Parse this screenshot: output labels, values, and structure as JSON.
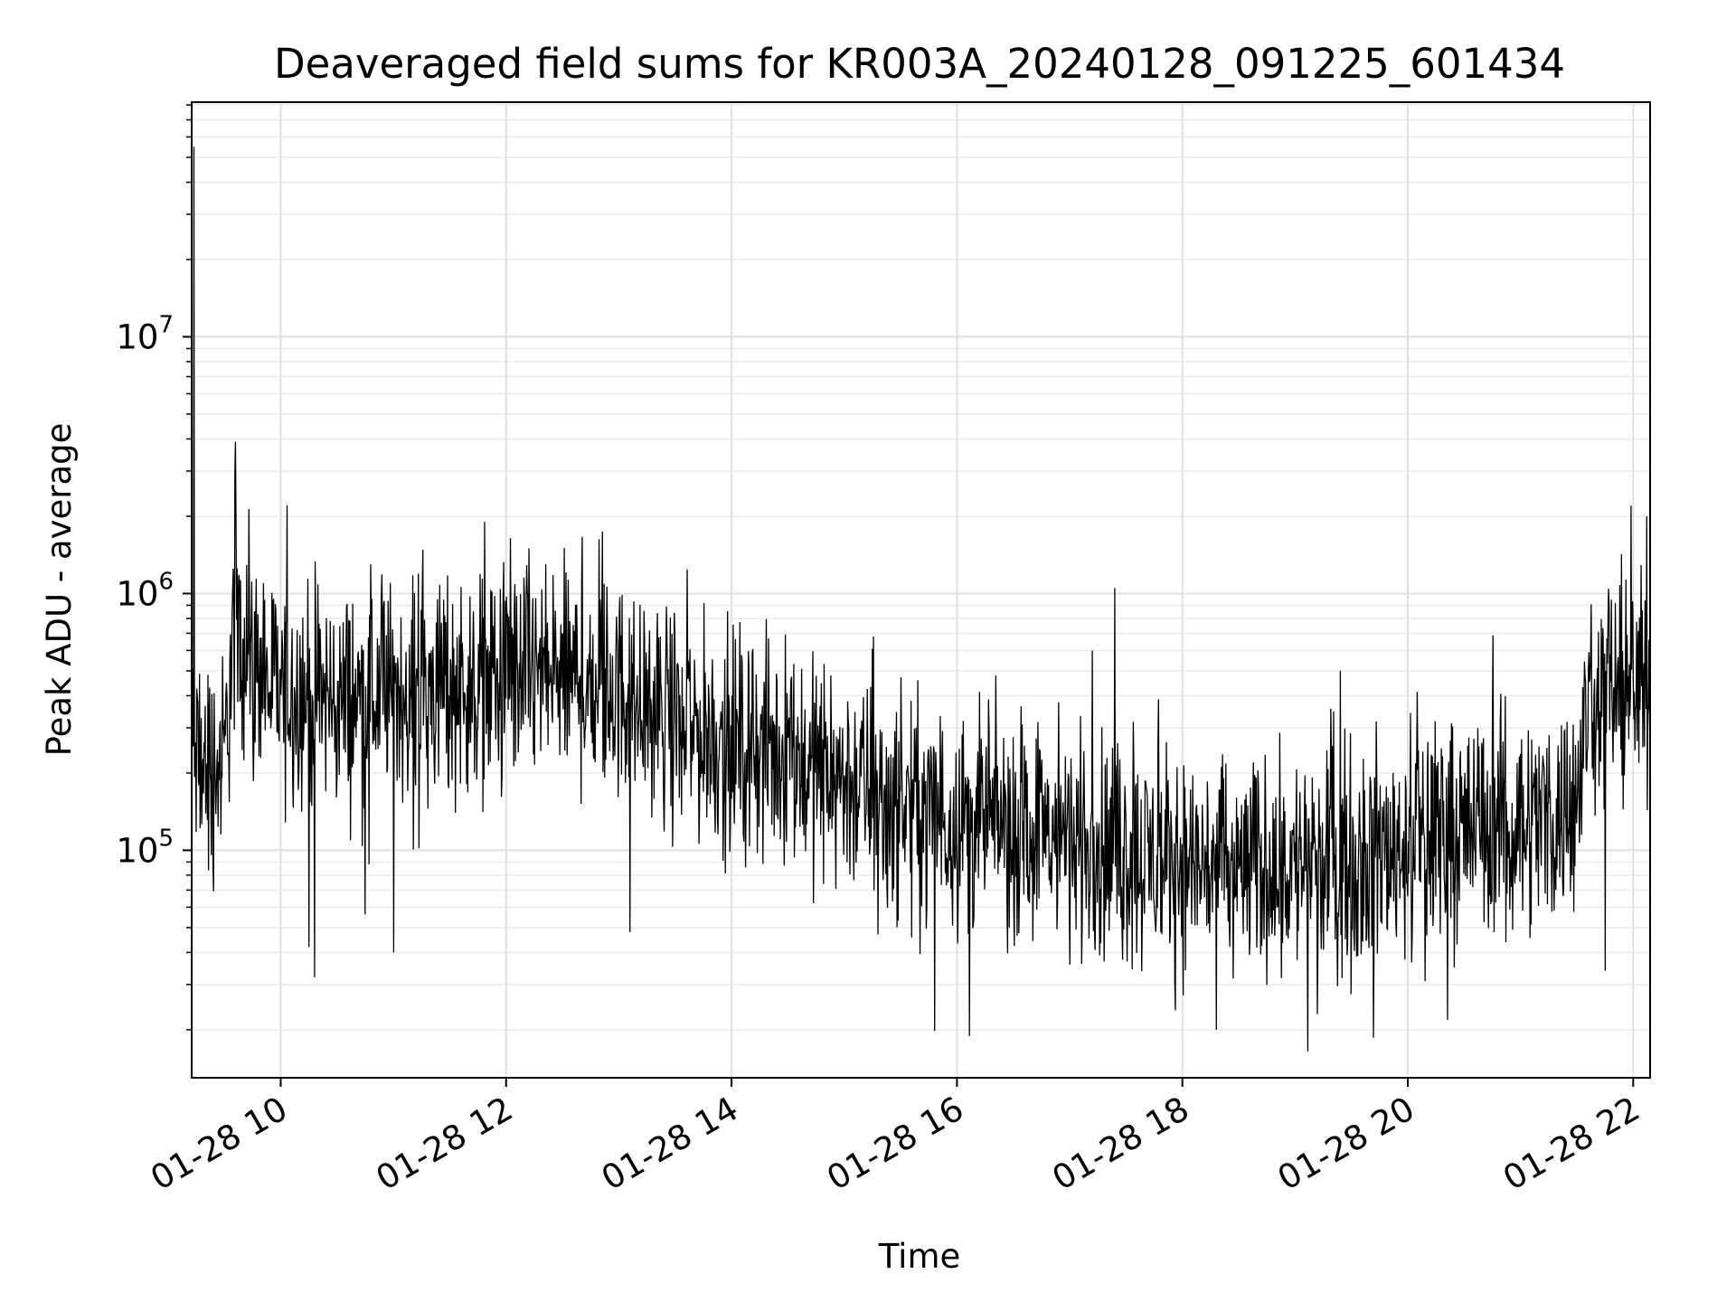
{
  "chart_data": {
    "type": "line",
    "title": "Deaveraged field sums for KR003A_20240128_091225_601434",
    "xlabel": "Time",
    "ylabel": "Peak ADU - average",
    "yscale": "log",
    "grid": true,
    "x_tick_labels": [
      "01-28 10",
      "01-28 12",
      "01-28 14",
      "01-28 16",
      "01-28 18",
      "01-28 20",
      "01-28 22"
    ],
    "y_tick_labels": [
      {
        "base": "10",
        "exp": "5"
      },
      {
        "base": "10",
        "exp": "6"
      },
      {
        "base": "10",
        "exp": "7"
      }
    ],
    "xlim_hours": [
      9.21,
      22.15
    ],
    "ylim": [
      13000,
      82000000
    ],
    "line_color": "#000000",
    "series": [
      {
        "x_hours": [
          9.21,
          9.25,
          9.3,
          9.4,
          9.5,
          9.58,
          9.65,
          9.75,
          9.9,
          10.1,
          10.3,
          10.5,
          10.8,
          11.0,
          11.3,
          11.6,
          11.9,
          12.2,
          12.5,
          12.8,
          13.1,
          13.4,
          13.7,
          14.0,
          14.3,
          14.6,
          14.9,
          15.2,
          15.5,
          15.8,
          16.1,
          16.4,
          16.7,
          17.0,
          17.3,
          17.6,
          17.9,
          18.2,
          18.5,
          18.8,
          19.1,
          19.4,
          19.7,
          20.0,
          20.3,
          20.6,
          20.9,
          21.2,
          21.5,
          21.6,
          21.7,
          21.8,
          21.95,
          22.1,
          22.15
        ],
        "y": [
          250000,
          220000,
          200000,
          210000,
          220000,
          700000,
          750000,
          500000,
          430000,
          420000,
          400000,
          380000,
          390000,
          420000,
          440000,
          450000,
          460000,
          480000,
          470000,
          440000,
          400000,
          340000,
          290000,
          260000,
          240000,
          220000,
          200000,
          170000,
          150000,
          140000,
          130000,
          125000,
          120000,
          110000,
          100000,
          95000,
          90000,
          88000,
          85000,
          86000,
          88000,
          90000,
          95000,
          110000,
          120000,
          125000,
          130000,
          135000,
          140000,
          380000,
          420000,
          450000,
          420000,
          430000,
          450000
        ],
        "spike_hours": [
          9.23,
          9.6,
          10.25,
          10.3,
          10.8,
          11.0,
          12.2,
          12.35,
          13.1,
          15.3,
          17.2,
          17.4,
          18.3,
          19.2,
          19.4,
          21.75,
          21.98,
          22.12
        ],
        "spike_values": [
          55000000,
          3900000,
          42000,
          32000,
          1300000,
          40000,
          1500000,
          1300000,
          48000,
          47000,
          600000,
          1050000,
          20000,
          23000,
          500000,
          34000,
          2200000,
          2000000
        ]
      }
    ]
  }
}
